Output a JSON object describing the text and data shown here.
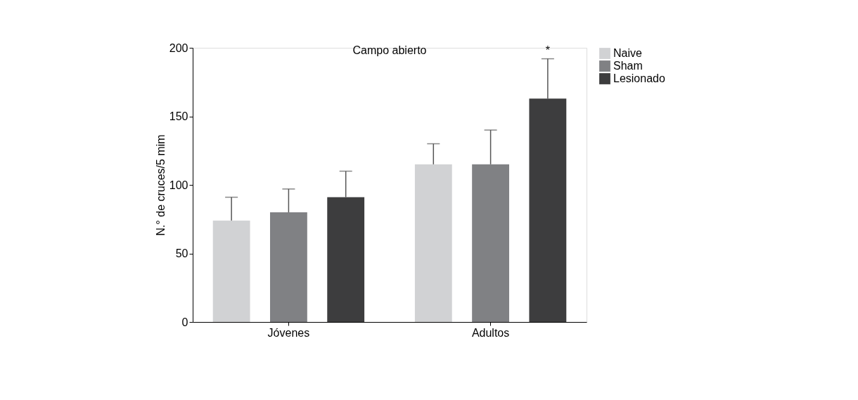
{
  "chart_data": {
    "type": "bar",
    "title": "Campo abierto",
    "ylabel": "N.° de cruces/5 mim",
    "categories": [
      "Jóvenes",
      "Adultos"
    ],
    "series": [
      {
        "name": "Naive",
        "color": "#d1d2d4",
        "values": [
          74,
          115
        ],
        "errors": [
          [
            74,
            91
          ],
          [
            115,
            130
          ]
        ]
      },
      {
        "name": "Sham",
        "color": "#808184",
        "values": [
          80,
          115
        ],
        "errors": [
          [
            80,
            97
          ],
          [
            115,
            140
          ]
        ]
      },
      {
        "name": "Lesionado",
        "color": "#3d3d3e",
        "values": [
          91,
          163
        ],
        "errors": [
          [
            91,
            110
          ],
          [
            163,
            192
          ]
        ]
      }
    ],
    "annotations": [
      "*"
    ],
    "ylim": [
      0,
      200
    ],
    "yticks": [
      0,
      50,
      100,
      150,
      200
    ],
    "grid": false,
    "legend": "right"
  }
}
